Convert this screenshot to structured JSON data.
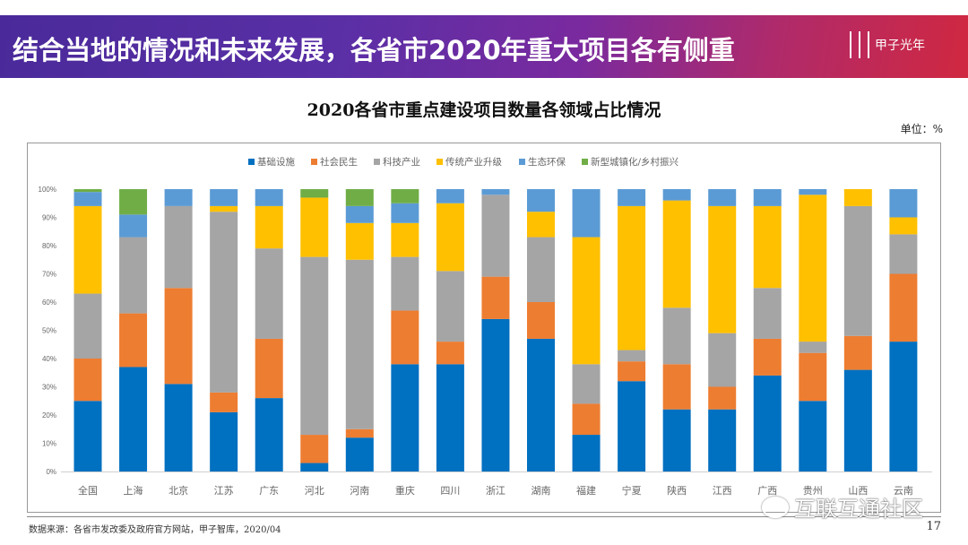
{
  "header": {
    "title": "结合当地的情况和未来发展，各省市2020年重大项目各有侧重",
    "logo_text": "甲子光年"
  },
  "unit_label": "单位：%",
  "footer": {
    "source": "数据来源：各省市发改委及政府官方网站，甲子智库，2020/04",
    "page_number": "17"
  },
  "watermark": {
    "text": "互联互通社区",
    "icon": "wechat-icon"
  },
  "chart_data": {
    "type": "bar",
    "stacked": true,
    "percent": true,
    "title": "2020各省市重点建设项目数量各领域占比情况",
    "xlabel": "",
    "ylabel": "",
    "ylim": [
      0,
      100
    ],
    "yticks": [
      "0%",
      "10%",
      "20%",
      "30%",
      "40%",
      "50%",
      "60%",
      "70%",
      "80%",
      "90%",
      "100%"
    ],
    "grid": false,
    "legend_position": "top",
    "categories": [
      "全国",
      "上海",
      "北京",
      "江苏",
      "广东",
      "河北",
      "河南",
      "重庆",
      "四川",
      "浙江",
      "湖南",
      "福建",
      "宁夏",
      "陕西",
      "江西",
      "广西",
      "贵州",
      "山西",
      "云南"
    ],
    "series": [
      {
        "name": "基础设施",
        "color": "#0070c0",
        "values": [
          25,
          37,
          31,
          21,
          26,
          3,
          12,
          38,
          38,
          54,
          47,
          13,
          32,
          22,
          22,
          34,
          25,
          36,
          46
        ]
      },
      {
        "name": "社会民生",
        "color": "#ed7d31",
        "values": [
          15,
          19,
          34,
          7,
          21,
          10,
          3,
          19,
          8,
          15,
          13,
          11,
          7,
          16,
          8,
          13,
          17,
          12,
          24
        ]
      },
      {
        "name": "科技产业",
        "color": "#a5a5a5",
        "values": [
          23,
          27,
          29,
          64,
          32,
          63,
          60,
          19,
          25,
          29,
          23,
          14,
          4,
          20,
          19,
          18,
          4,
          46,
          14
        ]
      },
      {
        "name": "传统产业升级",
        "color": "#ffc000",
        "values": [
          31,
          0,
          0,
          2,
          15,
          21,
          13,
          12,
          24,
          0,
          9,
          45,
          51,
          38,
          45,
          29,
          52,
          6,
          6
        ]
      },
      {
        "name": "生态环保",
        "color": "#5b9bd5",
        "values": [
          5,
          8,
          6,
          6,
          6,
          0,
          6,
          7,
          5,
          2,
          8,
          17,
          6,
          4,
          6,
          6,
          2,
          0,
          10
        ]
      },
      {
        "name": "新型城镇化/乡村振兴",
        "color": "#70ad47",
        "values": [
          1,
          9,
          0,
          0,
          0,
          3,
          6,
          5,
          0,
          0,
          0,
          0,
          0,
          0,
          0,
          0,
          0,
          0,
          0
        ]
      }
    ]
  }
}
